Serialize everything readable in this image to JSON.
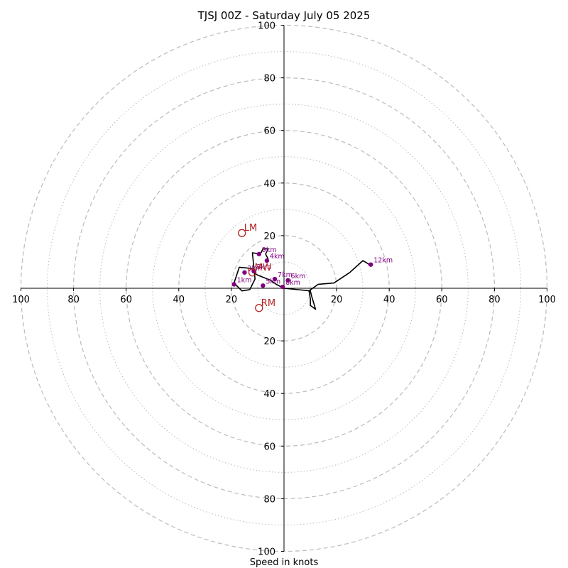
{
  "chart_data": {
    "type": "scatter",
    "title": "TJSJ 00Z - Saturday July 05 2025",
    "xlabel": "Speed in knots",
    "ylabel": "",
    "xlim": [
      -100,
      100
    ],
    "ylim": [
      -100,
      100
    ],
    "grid": true,
    "rings_major": [
      20,
      40,
      60,
      80,
      100
    ],
    "rings_minor": [
      10,
      30,
      50,
      70,
      90
    ],
    "x_ticks": [
      {
        "value": -100,
        "label": "100"
      },
      {
        "value": -80,
        "label": "80"
      },
      {
        "value": -60,
        "label": "60"
      },
      {
        "value": -40,
        "label": "40"
      },
      {
        "value": -20,
        "label": "20"
      },
      {
        "value": 20,
        "label": "20"
      },
      {
        "value": 40,
        "label": "40"
      },
      {
        "value": 60,
        "label": "60"
      },
      {
        "value": 80,
        "label": "80"
      },
      {
        "value": 100,
        "label": "100"
      }
    ],
    "y_ticks": [
      {
        "value": 100,
        "label": "100"
      },
      {
        "value": 80,
        "label": "80"
      },
      {
        "value": 60,
        "label": "60"
      },
      {
        "value": 40,
        "label": "40"
      },
      {
        "value": 20,
        "label": "20"
      },
      {
        "value": -20,
        "label": "20"
      },
      {
        "value": -40,
        "label": "40"
      },
      {
        "value": -60,
        "label": "60"
      },
      {
        "value": -80,
        "label": "80"
      },
      {
        "value": -100,
        "label": "100"
      }
    ],
    "hodograph_trace": [
      [
        0,
        0
      ],
      [
        10,
        -1
      ],
      [
        10.5,
        -3
      ],
      [
        12,
        -8
      ],
      [
        10,
        -6.5
      ],
      [
        10,
        -4
      ],
      [
        9.5,
        -1
      ],
      [
        13,
        1.5
      ],
      [
        19,
        2
      ],
      [
        25,
        6
      ],
      [
        30,
        10.5
      ],
      [
        32.5,
        9
      ],
      [
        32,
        9
      ]
    ],
    "hodograph_trace_low": [
      [
        0,
        0
      ],
      [
        -3,
        1.5
      ],
      [
        -5,
        3
      ],
      [
        -10,
        5
      ],
      [
        -11.5,
        6
      ],
      [
        -12,
        7.5
      ],
      [
        -17,
        8
      ],
      [
        -19,
        2
      ],
      [
        -16,
        -1
      ],
      [
        -13,
        -0.5
      ],
      [
        -11,
        3.5
      ],
      [
        -12,
        13.5
      ],
      [
        -9,
        13
      ],
      [
        -8,
        15
      ],
      [
        -6,
        15
      ],
      [
        -7,
        13
      ],
      [
        -6,
        11
      ]
    ],
    "height_markers": [
      {
        "label": "1km",
        "x": -19,
        "y": 1.5
      },
      {
        "label": "2km",
        "x": -15,
        "y": 6
      },
      {
        "label": "3km",
        "x": -11.5,
        "y": 6.5
      },
      {
        "label": "4km",
        "x": -6.5,
        "y": 10.5
      },
      {
        "label": "5km",
        "x": -8,
        "y": 1
      },
      {
        "label": "6km",
        "x": 1.5,
        "y": 3
      },
      {
        "label": "7km",
        "x": -3.5,
        "y": 3.5
      },
      {
        "label": "8km",
        "x": -0.5,
        "y": 0.5
      },
      {
        "label": "9km",
        "x": -9.5,
        "y": 13
      },
      {
        "label": "12km",
        "x": 33,
        "y": 9
      }
    ],
    "storm_motion": [
      {
        "label": "LM",
        "x": -16,
        "y": 21
      },
      {
        "label": "MW",
        "x": -12,
        "y": 6
      },
      {
        "label": "RM",
        "x": -9.5,
        "y": -7.5
      }
    ],
    "colors": {
      "trace": "#000000",
      "markers": "#800080",
      "storm_motion": "#b22222",
      "grid": "#bbbbbb",
      "axes": "#000000"
    }
  }
}
